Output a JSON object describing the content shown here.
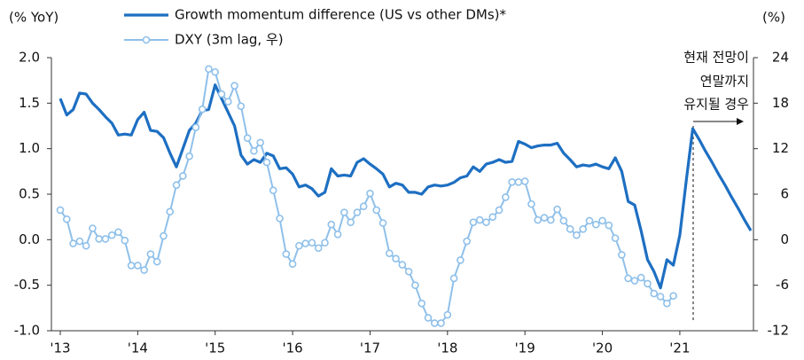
{
  "chart_data": {
    "type": "line",
    "y_label": "(% YoY)",
    "y2_label": "(%)",
    "annotation": [
      "현재 전망이",
      "연말까지",
      "유지될 경우"
    ],
    "categories": [
      "'13",
      null,
      null,
      null,
      null,
      null,
      null,
      null,
      null,
      null,
      null,
      null,
      "'14",
      null,
      null,
      null,
      null,
      null,
      null,
      null,
      null,
      null,
      null,
      null,
      "'15",
      null,
      null,
      null,
      null,
      null,
      null,
      null,
      null,
      null,
      null,
      null,
      "'16",
      null,
      null,
      null,
      null,
      null,
      null,
      null,
      null,
      null,
      null,
      null,
      "'17",
      null,
      null,
      null,
      null,
      null,
      null,
      null,
      null,
      null,
      null,
      null,
      "'18",
      null,
      null,
      null,
      null,
      null,
      null,
      null,
      null,
      null,
      null,
      null,
      "'19",
      null,
      null,
      null,
      null,
      null,
      null,
      null,
      null,
      null,
      null,
      null,
      "'20",
      null,
      null,
      null,
      null,
      null,
      null,
      null,
      null,
      null,
      null,
      null,
      "'21",
      null,
      null,
      null,
      null,
      null,
      null,
      null,
      null,
      null,
      null,
      null
    ],
    "series": [
      {
        "name": "Growth momentum difference (US vs other DMs)*",
        "color": "#1d6fc2",
        "axis": "y",
        "values": [
          1.55,
          1.37,
          1.43,
          1.61,
          1.6,
          1.5,
          1.43,
          1.35,
          1.28,
          1.15,
          1.16,
          1.15,
          1.32,
          1.4,
          1.2,
          1.19,
          1.12,
          0.95,
          0.8,
          1.0,
          1.2,
          1.28,
          1.42,
          1.43,
          1.7,
          1.55,
          1.4,
          1.25,
          0.93,
          0.83,
          0.88,
          0.85,
          0.95,
          0.92,
          0.78,
          0.79,
          0.72,
          0.58,
          0.6,
          0.56,
          0.48,
          0.52,
          0.78,
          0.7,
          0.71,
          0.7,
          0.85,
          0.89,
          0.83,
          0.78,
          0.72,
          0.58,
          0.62,
          0.6,
          0.52,
          0.52,
          0.5,
          0.58,
          0.6,
          0.59,
          0.6,
          0.63,
          0.68,
          0.7,
          0.8,
          0.75,
          0.83,
          0.85,
          0.88,
          0.85,
          0.86,
          1.08,
          1.05,
          1.01,
          1.03,
          1.04,
          1.04,
          1.06,
          0.95,
          0.88,
          0.8,
          0.82,
          0.81,
          0.83,
          0.8,
          0.78,
          0.9,
          0.75,
          0.42,
          0.38,
          0.1,
          -0.22,
          -0.35,
          -0.53,
          -0.22,
          -0.28,
          0.05,
          0.65,
          1.22,
          1.1,
          0.97,
          0.85,
          0.72,
          0.6,
          0.47,
          0.35,
          0.22,
          0.1
        ]
      },
      {
        "name": "DXY (3m lag, 우)",
        "color": "#8fc0ea",
        "axis": "y2",
        "markers": true,
        "values": [
          3.9,
          2.7,
          -0.5,
          -0.2,
          -0.8,
          1.5,
          0.1,
          0.1,
          0.6,
          1.0,
          -0.1,
          -3.4,
          -3.4,
          -4.0,
          -1.9,
          -2.9,
          0.5,
          3.7,
          7.2,
          8.4,
          11.0,
          14.8,
          17.2,
          22.5,
          22.1,
          19.2,
          18.2,
          20.3,
          17.6,
          13.4,
          11.7,
          12.8,
          10.2,
          6.5,
          2.8,
          -1.9,
          -3.2,
          -0.8,
          -0.5,
          -0.4,
          -1.1,
          -0.4,
          2.0,
          0.7,
          3.6,
          2.3,
          3.6,
          4.4,
          6.1,
          3.9,
          2.2,
          -1.8,
          -2.5,
          -3.3,
          -4.2,
          -6.0,
          -8.4,
          -10.3,
          -11.0,
          -11.0,
          -9.9,
          -5.1,
          -2.7,
          -0.2,
          2.3,
          2.6,
          2.3,
          3.0,
          3.9,
          5.6,
          7.6,
          7.6,
          7.7,
          4.7,
          2.6,
          2.9,
          2.6,
          4.0,
          2.5,
          1.4,
          0.6,
          1.4,
          2.5,
          2.0,
          2.5,
          1.9,
          0.2,
          -2.0,
          -5.1,
          -5.4,
          -5.0,
          -5.8,
          -7.1,
          -7.5,
          -8.4,
          -7.4,
          null,
          null,
          null,
          null,
          null,
          null,
          null,
          null,
          null,
          null,
          null,
          null
        ]
      }
    ],
    "ylim": [
      -1,
      2
    ],
    "yticks": [
      {
        "value": 2,
        "label": "2.0"
      },
      1.5,
      {
        "value": 1,
        "label": "1.0"
      },
      0.5,
      {
        "value": 0,
        "label": "0.0"
      },
      -0.5,
      {
        "value": -1,
        "label": "-1.0"
      }
    ],
    "y2lim": [
      -12,
      24
    ],
    "y2ticks": [
      24,
      18,
      12,
      6,
      0,
      -6,
      -12
    ]
  }
}
